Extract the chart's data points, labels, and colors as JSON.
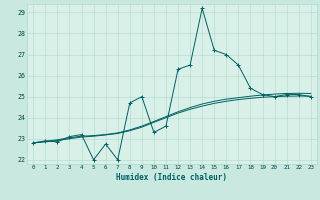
{
  "title": "",
  "xlabel": "Humidex (Indice chaleur)",
  "ylabel": "",
  "background_color": "#c8e8e0",
  "plot_bg_color": "#d8f0e8",
  "grid_color": "#b0d8cc",
  "line_color": "#006060",
  "x_data": [
    0,
    1,
    2,
    3,
    4,
    5,
    6,
    7,
    8,
    9,
    10,
    11,
    12,
    13,
    14,
    15,
    16,
    17,
    18,
    19,
    20,
    21,
    22,
    23
  ],
  "y_main": [
    22.8,
    22.9,
    22.85,
    23.1,
    23.2,
    22.0,
    22.75,
    22.0,
    24.7,
    25.0,
    23.3,
    23.6,
    26.3,
    26.5,
    29.2,
    27.2,
    27.0,
    26.5,
    25.4,
    25.1,
    25.0,
    25.1,
    25.1,
    25.0
  ],
  "y_line2": [
    22.8,
    22.88,
    22.95,
    23.05,
    23.12,
    23.15,
    23.2,
    23.28,
    23.42,
    23.6,
    23.82,
    24.05,
    24.28,
    24.48,
    24.65,
    24.78,
    24.88,
    24.95,
    25.02,
    25.08,
    25.12,
    25.15,
    25.16,
    25.15
  ],
  "y_line3": [
    22.8,
    22.85,
    22.92,
    23.0,
    23.08,
    23.12,
    23.18,
    23.25,
    23.38,
    23.55,
    23.78,
    24.0,
    24.22,
    24.4,
    24.55,
    24.68,
    24.78,
    24.86,
    24.92,
    24.97,
    25.0,
    25.02,
    25.03,
    25.02
  ],
  "ylim": [
    21.8,
    29.4
  ],
  "xlim": [
    -0.5,
    23.5
  ],
  "yticks": [
    22,
    23,
    24,
    25,
    26,
    27,
    28,
    29
  ],
  "xticks": [
    0,
    1,
    2,
    3,
    4,
    5,
    6,
    7,
    8,
    9,
    10,
    11,
    12,
    13,
    14,
    15,
    16,
    17,
    18,
    19,
    20,
    21,
    22,
    23
  ]
}
